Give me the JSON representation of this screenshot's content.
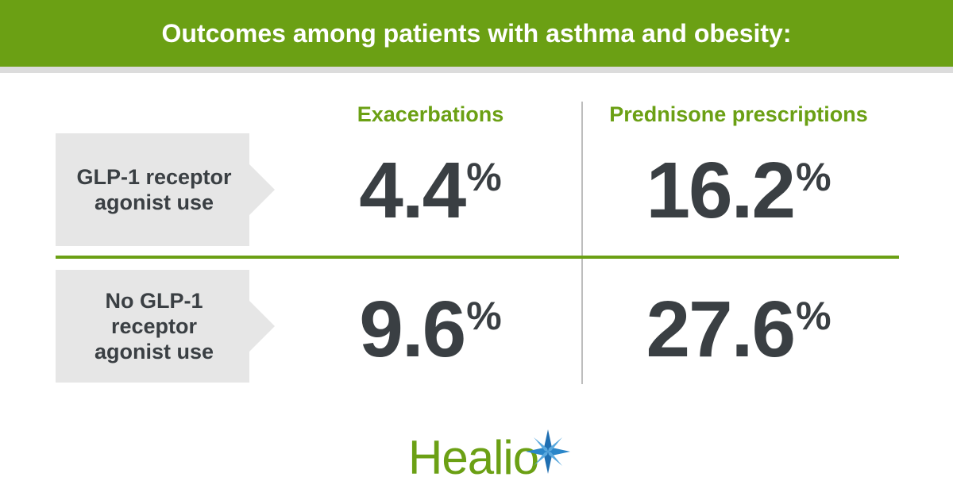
{
  "header": {
    "title": "Outcomes among patients with asthma and obesity:"
  },
  "columns": [
    {
      "label": "Exacerbations"
    },
    {
      "label": "Prednisone prescriptions"
    }
  ],
  "rows": [
    {
      "label": "GLP-1 receptor\nagonist use",
      "values": [
        "4.4",
        "16.2"
      ]
    },
    {
      "label": "No GLP-1\nreceptor\nagonist use",
      "values": [
        "9.6",
        "27.6"
      ]
    }
  ],
  "unit": "%",
  "logo": {
    "text": "Healio"
  },
  "colors": {
    "accent": "#6ba014",
    "text": "#3a3f43",
    "label_bg": "#e6e6e6",
    "logo_star": "#1f6fb2"
  }
}
